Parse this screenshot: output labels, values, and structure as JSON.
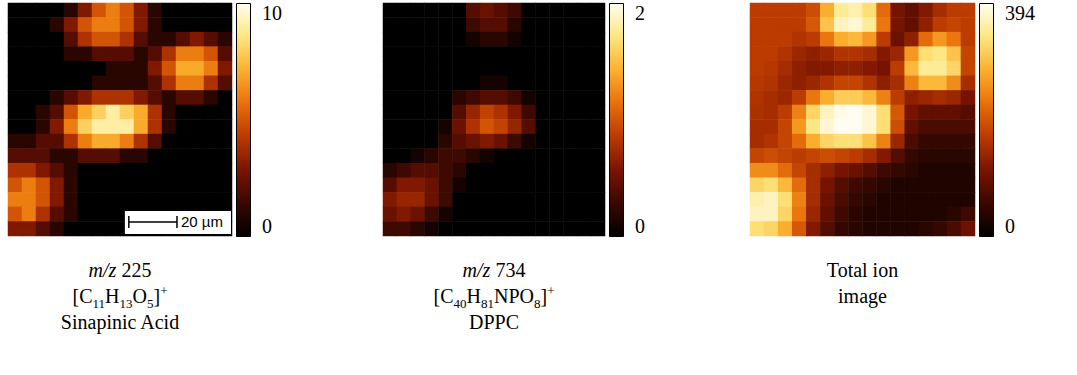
{
  "chart_data": [
    {
      "type": "heatmap",
      "title": "m/z 225",
      "formula": "[C11H13O5]+",
      "subtitle": "Sinapinic Acid",
      "tick_labels": false,
      "xlim": [
        0,
        93
      ],
      "scale_bar": {
        "label": "20 µm",
        "length": 20
      },
      "colorbar": {
        "range": [
          0,
          10
        ],
        "ticks": [
          0,
          10
        ]
      },
      "cells": [
        [
          0,
          0,
          0,
          0,
          1,
          3,
          5,
          6,
          5,
          3,
          1,
          0,
          0,
          0,
          0,
          0
        ],
        [
          0,
          0,
          0,
          1,
          3,
          5,
          6,
          6,
          5,
          3,
          1,
          0,
          0,
          0,
          0,
          0
        ],
        [
          0,
          0,
          0,
          0,
          2,
          4,
          5,
          5,
          4,
          2,
          1,
          1,
          2,
          3,
          2,
          1
        ],
        [
          0,
          0,
          0,
          0,
          1,
          1,
          2,
          2,
          2,
          1,
          2,
          4,
          6,
          6,
          5,
          2
        ],
        [
          0,
          0,
          0,
          0,
          0,
          0,
          0,
          1,
          1,
          1,
          3,
          5,
          7,
          7,
          6,
          3
        ],
        [
          0,
          0,
          0,
          0,
          0,
          0,
          1,
          1,
          1,
          1,
          2,
          4,
          6,
          6,
          4,
          2
        ],
        [
          0,
          0,
          0,
          1,
          2,
          3,
          4,
          4,
          4,
          3,
          2,
          1,
          2,
          2,
          1,
          0
        ],
        [
          0,
          0,
          1,
          2,
          5,
          7,
          8,
          9,
          8,
          7,
          4,
          1,
          0,
          0,
          0,
          0
        ],
        [
          0,
          0,
          1,
          3,
          6,
          8,
          9,
          9,
          9,
          7,
          4,
          1,
          0,
          0,
          0,
          0
        ],
        [
          1,
          1,
          2,
          2,
          4,
          6,
          7,
          7,
          6,
          4,
          2,
          0,
          0,
          0,
          0,
          0
        ],
        [
          2,
          2,
          2,
          1,
          1,
          2,
          2,
          2,
          1,
          1,
          0,
          0,
          0,
          0,
          0,
          0
        ],
        [
          4,
          4,
          3,
          2,
          1,
          0,
          0,
          0,
          0,
          0,
          0,
          0,
          0,
          0,
          0,
          0
        ],
        [
          5,
          6,
          5,
          3,
          1,
          0,
          0,
          0,
          0,
          0,
          0,
          0,
          0,
          0,
          0,
          0
        ],
        [
          6,
          6,
          5,
          3,
          1,
          0,
          0,
          0,
          0,
          0,
          0,
          0,
          0,
          0,
          0,
          0
        ],
        [
          5,
          6,
          4,
          2,
          1,
          0,
          0,
          0,
          0,
          0,
          0,
          0,
          0,
          0,
          0,
          0
        ],
        [
          3,
          3,
          2,
          1,
          0,
          0,
          0,
          0,
          0,
          0,
          0,
          0,
          0,
          0,
          0,
          0
        ]
      ]
    },
    {
      "type": "heatmap",
      "title": "m/z 734",
      "formula": "[C40H81NPO8]+",
      "subtitle": "DPPC",
      "tick_labels": false,
      "colorbar": {
        "range": [
          0,
          2
        ],
        "ticks": [
          0,
          2
        ]
      },
      "cells": [
        [
          0,
          0,
          0,
          0,
          0,
          0,
          0.4,
          0.5,
          0.4,
          0.3,
          0,
          0,
          0,
          0,
          0,
          0
        ],
        [
          0,
          0,
          0,
          0,
          0,
          0,
          0.3,
          0.4,
          0.4,
          0.2,
          0,
          0,
          0,
          0,
          0,
          0
        ],
        [
          0,
          0,
          0,
          0,
          0,
          0,
          0.1,
          0.2,
          0.2,
          0.1,
          0,
          0,
          0,
          0,
          0,
          0
        ],
        [
          0,
          0,
          0,
          0,
          0,
          0,
          0,
          0,
          0,
          0,
          0,
          0,
          0,
          0,
          0,
          0
        ],
        [
          0,
          0,
          0,
          0,
          0,
          0,
          0,
          0,
          0,
          0,
          0,
          0,
          0,
          0,
          0,
          0
        ],
        [
          0,
          0,
          0,
          0,
          0,
          0,
          0,
          0.1,
          0.1,
          0,
          0,
          0,
          0,
          0,
          0,
          0
        ],
        [
          0,
          0,
          0,
          0,
          0,
          0.2,
          0.3,
          0.4,
          0.4,
          0.3,
          0.1,
          0,
          0,
          0,
          0,
          0
        ],
        [
          0,
          0,
          0,
          0,
          0,
          0.4,
          0.7,
          0.9,
          0.8,
          0.6,
          0.3,
          0,
          0,
          0,
          0,
          0
        ],
        [
          0,
          0,
          0,
          0,
          0.1,
          0.5,
          0.8,
          1.0,
          0.9,
          0.7,
          0.4,
          0,
          0,
          0,
          0,
          0
        ],
        [
          0,
          0,
          0,
          0,
          0.2,
          0.4,
          0.5,
          0.6,
          0.5,
          0.3,
          0.1,
          0,
          0,
          0,
          0,
          0
        ],
        [
          0,
          0,
          0.1,
          0.2,
          0.3,
          0.3,
          0.2,
          0.1,
          0,
          0,
          0,
          0,
          0,
          0,
          0,
          0
        ],
        [
          0.2,
          0.3,
          0.4,
          0.4,
          0.3,
          0.2,
          0,
          0,
          0,
          0,
          0,
          0,
          0,
          0,
          0,
          0
        ],
        [
          0.4,
          0.6,
          0.6,
          0.5,
          0.3,
          0.1,
          0,
          0,
          0,
          0,
          0,
          0,
          0,
          0,
          0,
          0
        ],
        [
          0.6,
          0.7,
          0.7,
          0.5,
          0.3,
          0,
          0,
          0,
          0,
          0,
          0,
          0,
          0,
          0,
          0,
          0
        ],
        [
          0.5,
          0.6,
          0.5,
          0.3,
          0.1,
          0,
          0,
          0,
          0,
          0,
          0,
          0,
          0,
          0,
          0,
          0
        ],
        [
          0.3,
          0.3,
          0.2,
          0.1,
          0,
          0,
          0,
          0,
          0,
          0,
          0,
          0,
          0,
          0,
          0,
          0
        ]
      ]
    },
    {
      "type": "heatmap",
      "title": "Total ion image",
      "tick_labels": false,
      "colorbar": {
        "range": [
          0,
          394
        ],
        "ticks": [
          0,
          394
        ]
      },
      "cells": [
        [
          170,
          170,
          170,
          170,
          190,
          280,
          350,
          360,
          330,
          220,
          110,
          90,
          120,
          150,
          170,
          170
        ],
        [
          170,
          170,
          170,
          170,
          200,
          300,
          370,
          380,
          350,
          230,
          110,
          90,
          130,
          170,
          180,
          170
        ],
        [
          170,
          170,
          170,
          160,
          170,
          230,
          280,
          290,
          260,
          170,
          100,
          130,
          220,
          260,
          230,
          170
        ],
        [
          170,
          170,
          160,
          140,
          130,
          140,
          160,
          160,
          150,
          120,
          140,
          260,
          330,
          340,
          300,
          180
        ],
        [
          170,
          165,
          150,
          130,
          120,
          120,
          130,
          130,
          120,
          110,
          170,
          290,
          350,
          350,
          320,
          180
        ],
        [
          165,
          160,
          140,
          130,
          140,
          160,
          180,
          180,
          160,
          130,
          150,
          240,
          290,
          290,
          250,
          150
        ],
        [
          160,
          150,
          140,
          170,
          230,
          280,
          310,
          310,
          290,
          240,
          170,
          130,
          140,
          150,
          140,
          110
        ],
        [
          155,
          150,
          170,
          240,
          320,
          370,
          390,
          394,
          380,
          330,
          200,
          110,
          90,
          90,
          90,
          80
        ],
        [
          150,
          150,
          180,
          260,
          340,
          380,
          394,
          394,
          380,
          330,
          190,
          90,
          70,
          70,
          70,
          70
        ],
        [
          150,
          160,
          180,
          220,
          280,
          320,
          330,
          330,
          300,
          240,
          140,
          70,
          50,
          50,
          50,
          50
        ],
        [
          180,
          190,
          180,
          170,
          180,
          190,
          180,
          170,
          150,
          120,
          80,
          50,
          40,
          40,
          40,
          40
        ],
        [
          250,
          250,
          220,
          180,
          150,
          130,
          110,
          100,
          80,
          60,
          50,
          40,
          30,
          30,
          30,
          30
        ],
        [
          320,
          330,
          290,
          220,
          150,
          110,
          80,
          60,
          50,
          40,
          30,
          30,
          30,
          30,
          30,
          30
        ],
        [
          360,
          370,
          330,
          240,
          150,
          100,
          70,
          50,
          40,
          30,
          30,
          30,
          30,
          30,
          30,
          30
        ],
        [
          370,
          370,
          320,
          230,
          140,
          90,
          60,
          40,
          30,
          30,
          30,
          30,
          30,
          30,
          40,
          60
        ],
        [
          330,
          320,
          280,
          200,
          120,
          80,
          50,
          40,
          30,
          30,
          30,
          30,
          40,
          50,
          70,
          100
        ]
      ]
    }
  ]
}
